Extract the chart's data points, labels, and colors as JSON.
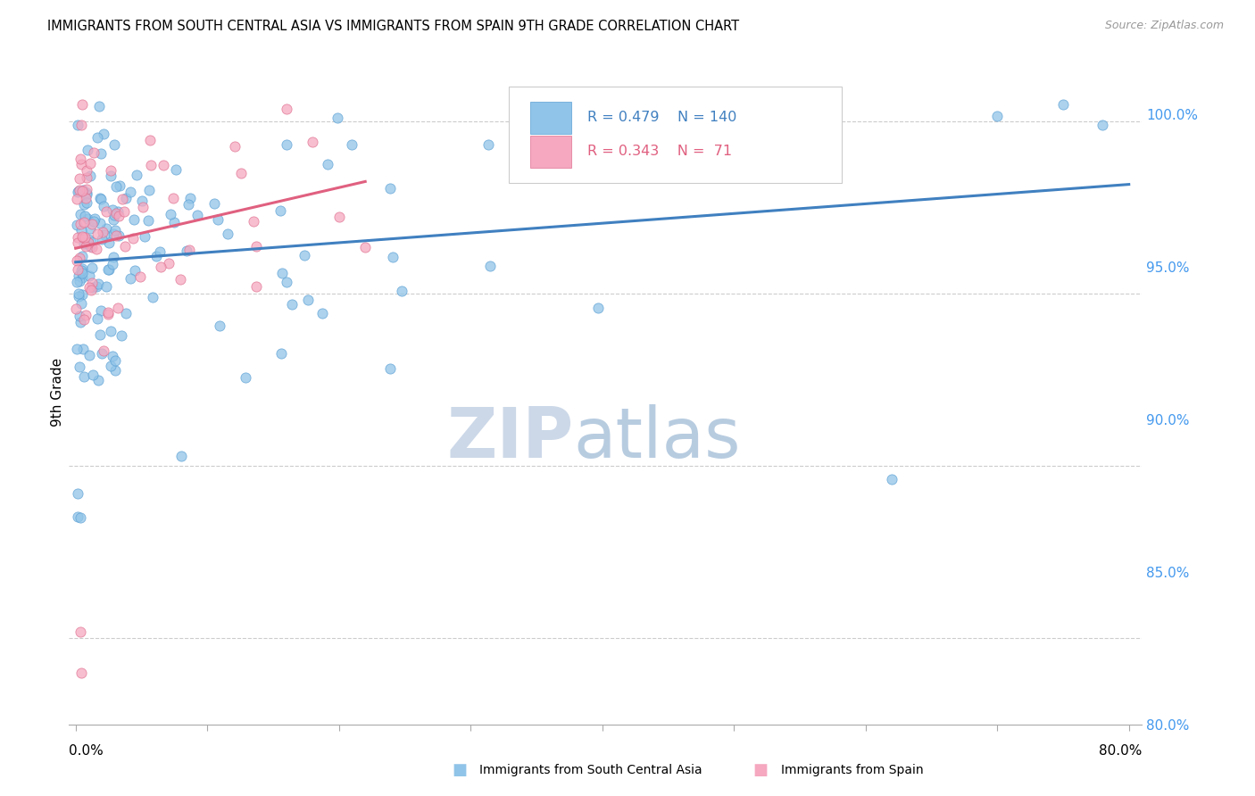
{
  "title": "IMMIGRANTS FROM SOUTH CENTRAL ASIA VS IMMIGRANTS FROM SPAIN 9TH GRADE CORRELATION CHART",
  "source": "Source: ZipAtlas.com",
  "ylabel": "9th Grade",
  "right_ytick_labels": [
    "80.0%",
    "85.0%",
    "90.0%",
    "95.0%",
    "100.0%"
  ],
  "right_ytick_vals": [
    80.0,
    85.0,
    90.0,
    95.0,
    100.0
  ],
  "legend_blue_label": "Immigrants from South Central Asia",
  "legend_pink_label": "Immigrants from Spain",
  "R_blue": 0.479,
  "N_blue": 140,
  "R_pink": 0.343,
  "N_pink": 71,
  "blue_scatter_color": "#90c4e8",
  "blue_edge_color": "#5a9fd4",
  "pink_scatter_color": "#f5a8c0",
  "pink_edge_color": "#e07090",
  "blue_line_color": "#4080c0",
  "pink_line_color": "#e06080",
  "title_fontsize": 10.5,
  "watermark_zip_color": "#ccd8e8",
  "watermark_atlas_color": "#b8cce0",
  "ylim_bottom": 82.5,
  "ylim_top": 101.8,
  "xlim_left": -0.5,
  "xlim_right": 81.0,
  "seed_blue": 101,
  "seed_pink": 202
}
